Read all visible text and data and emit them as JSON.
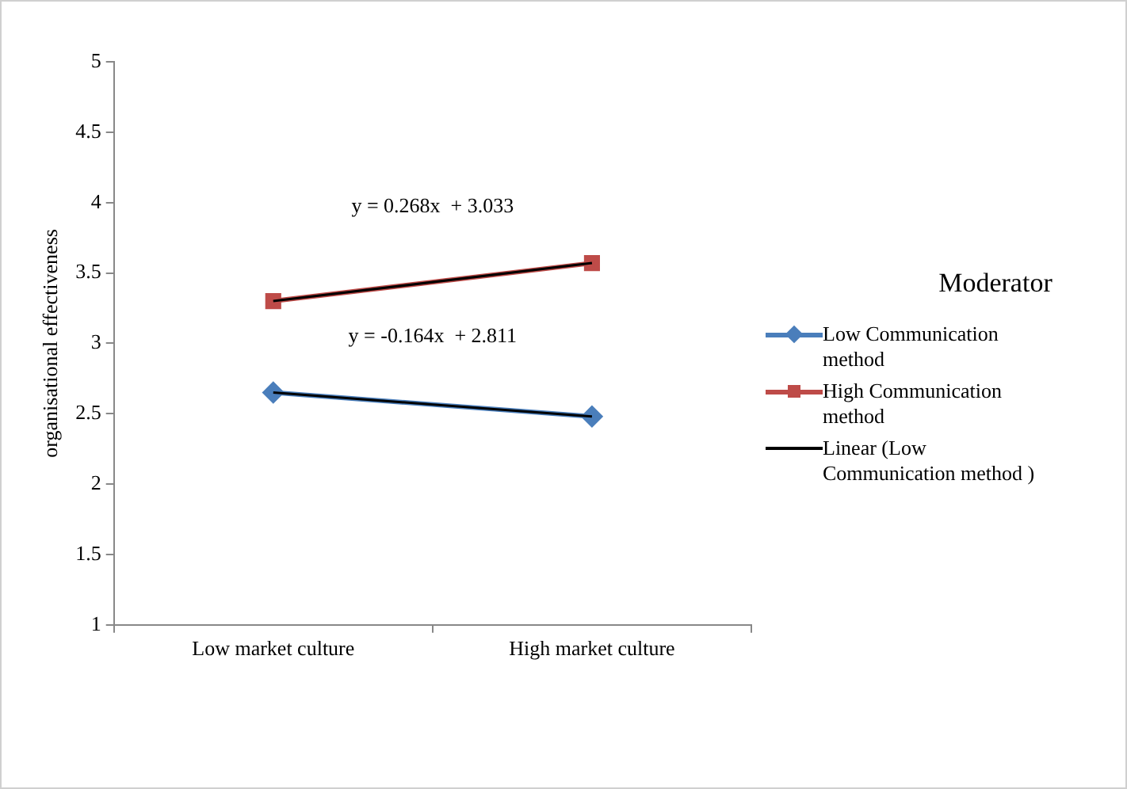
{
  "chart_data": {
    "type": "line",
    "ylabel": "organisational effectiveness",
    "legend_title": "Moderator",
    "categories": [
      "Low market culture",
      "High market culture"
    ],
    "series": [
      {
        "name": "Low Communication method",
        "color": "#4a7ebb",
        "values": [
          2.65,
          2.48
        ],
        "marker": "diamond"
      },
      {
        "name": "High Communication method",
        "color": "#be4b48",
        "values": [
          3.3,
          3.57
        ],
        "marker": "square"
      },
      {
        "name": "Linear (Low Communication method )",
        "color": "#000000",
        "values": [
          2.65,
          2.48
        ],
        "marker": "none"
      },
      {
        "color": "#000000",
        "values": [
          3.3,
          3.57
        ],
        "marker": "none"
      }
    ],
    "annotations": [
      "y = 0.268x  + 3.033",
      "y = -0.164x  + 2.811"
    ],
    "ylim": [
      1,
      5
    ],
    "yticks": [
      1,
      1.5,
      2,
      2.5,
      3,
      3.5,
      4,
      4.5,
      5
    ],
    "grid": false,
    "legend": "right"
  }
}
